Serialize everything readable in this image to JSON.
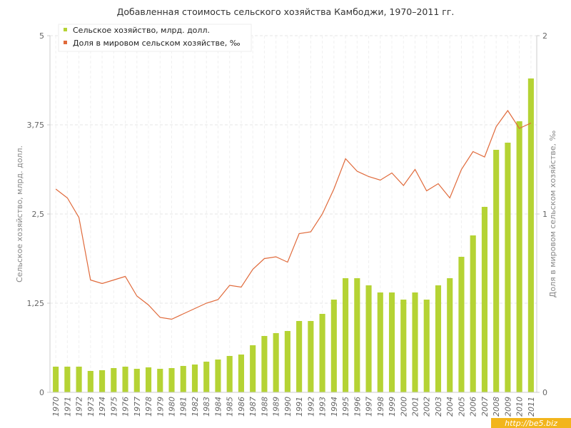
{
  "chart_data": {
    "type": "bar",
    "title": "Добавленная стоимость сельского хозяйства Камбоджи, 1970–2011 гг.",
    "x": [
      1970,
      1971,
      1972,
      1973,
      1974,
      1975,
      1976,
      1977,
      1978,
      1979,
      1980,
      1981,
      1982,
      1983,
      1984,
      1985,
      1986,
      1987,
      1988,
      1989,
      1990,
      1991,
      1992,
      1993,
      1994,
      1995,
      1996,
      1997,
      1998,
      1999,
      2000,
      2001,
      2002,
      2003,
      2004,
      2005,
      2006,
      2007,
      2008,
      2009,
      2010,
      2011
    ],
    "xlabels": [
      "1970",
      "1971",
      "1972",
      "1973",
      "1974",
      "1975",
      "1976",
      "1977",
      "1978",
      "1979",
      "1980",
      "1981",
      "1982",
      "1983",
      "1984",
      "1985",
      "1986",
      "1987",
      "1988",
      "1989",
      "1990",
      "1991",
      "1992",
      "1993",
      "1994",
      "1995",
      "1996",
      "1997",
      "1998",
      "1999",
      "2000",
      "2001",
      "2002",
      "2003",
      "2004",
      "2005",
      "2006",
      "2007",
      "2008",
      "2009",
      "2010",
      "2011"
    ],
    "series": [
      {
        "name": "Сельское хозяйство, млрд. долл.",
        "type": "bar",
        "axis": "left",
        "color": "#b5d334",
        "values": [
          0.36,
          0.36,
          0.36,
          0.3,
          0.31,
          0.34,
          0.36,
          0.33,
          0.35,
          0.33,
          0.34,
          0.37,
          0.39,
          0.43,
          0.46,
          0.51,
          0.53,
          0.66,
          0.79,
          0.83,
          0.86,
          1.0,
          1.0,
          1.1,
          1.3,
          1.6,
          1.6,
          1.5,
          1.4,
          1.4,
          1.3,
          1.4,
          1.3,
          1.5,
          1.6,
          1.9,
          2.2,
          2.6,
          3.4,
          3.5,
          3.8,
          4.4
        ]
      },
      {
        "name": "Доля в мировом сельском хозяйстве, ‰",
        "type": "line",
        "axis": "right",
        "color": "#e06a3b",
        "values": [
          1.14,
          1.09,
          0.98,
          0.63,
          0.61,
          0.63,
          0.65,
          0.54,
          0.49,
          0.42,
          0.41,
          0.44,
          0.47,
          0.5,
          0.52,
          0.6,
          0.59,
          0.69,
          0.75,
          0.76,
          0.73,
          0.89,
          0.9,
          1.0,
          1.14,
          1.31,
          1.24,
          1.21,
          1.19,
          1.23,
          1.16,
          1.25,
          1.13,
          1.17,
          1.09,
          1.25,
          1.35,
          1.32,
          1.49,
          1.58,
          1.48,
          1.51
        ]
      }
    ],
    "yleft": {
      "label": "Сельское хозяйство, млрд. долл.",
      "ylim": [
        0,
        5
      ],
      "ticks": [
        0,
        1.25,
        2.5,
        3.75,
        5
      ],
      "tick_labels": [
        "0",
        "1,25",
        "2,5",
        "3,75",
        "5"
      ]
    },
    "yright": {
      "label": "Доля в мировом сельском хозяйстве, ‰",
      "ylim": [
        0,
        2
      ],
      "ticks": [
        0,
        1,
        2
      ],
      "tick_labels": [
        "0",
        "1",
        "2"
      ]
    },
    "grid": true,
    "legend": "top-left"
  },
  "watermark": "http://be5.biz"
}
